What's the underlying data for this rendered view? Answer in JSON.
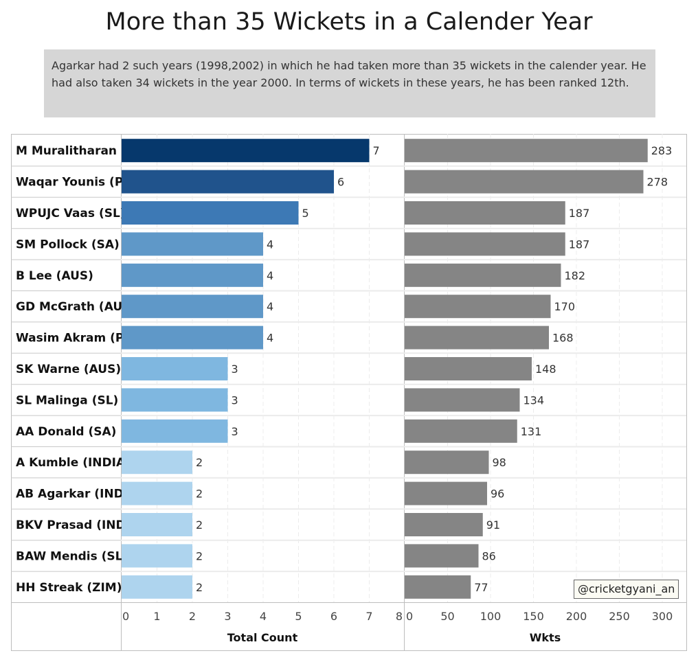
{
  "title": "More than 35 Wickets in a Calender Year",
  "note": "Agarkar had 2 such years (1998,2002) in which he had taken more than 35 wickets in the calender year. He had also taken 34 wickets in the year 2000. In terms of wickets in these years, he has been ranked 12th.",
  "credit": "@cricketgyani_an",
  "chart_data": {
    "type": "bar",
    "orientation": "horizontal",
    "categories": [
      "M Muralitharan (..",
      "Waqar Younis (P..",
      "WPUJC Vaas (SL)",
      "SM Pollock (SA)",
      "B Lee (AUS)",
      "GD McGrath (AU..",
      "Wasim Akram (P..",
      "SK Warne (AUS)",
      "SL Malinga (SL)",
      "AA Donald (SA)",
      "A Kumble (INDIA)",
      "AB Agarkar (IND..",
      "BKV Prasad (IND..",
      "BAW Mendis (SL)",
      "HH Streak (ZIM)"
    ],
    "panels": [
      {
        "xlabel": "Total Count",
        "xlim": [
          0,
          8
        ],
        "ticks": [
          0,
          1,
          2,
          3,
          4,
          5,
          6,
          7,
          8
        ],
        "values": [
          7,
          6,
          5,
          4,
          4,
          4,
          4,
          3,
          3,
          3,
          2,
          2,
          2,
          2,
          2
        ],
        "color_scale": {
          "2": "#aed4ee",
          "3": "#7fb7e0",
          "4": "#5f98c8",
          "5": "#3d79b5",
          "6": "#20538c",
          "7": "#06386c"
        }
      },
      {
        "xlabel": "Wkts",
        "xlim": [
          0,
          320
        ],
        "ticks": [
          0,
          50,
          100,
          150,
          200,
          250,
          300
        ],
        "values": [
          283,
          278,
          187,
          187,
          182,
          170,
          168,
          148,
          134,
          131,
          98,
          96,
          91,
          86,
          77
        ],
        "color": "#858585"
      }
    ],
    "grid": true
  }
}
